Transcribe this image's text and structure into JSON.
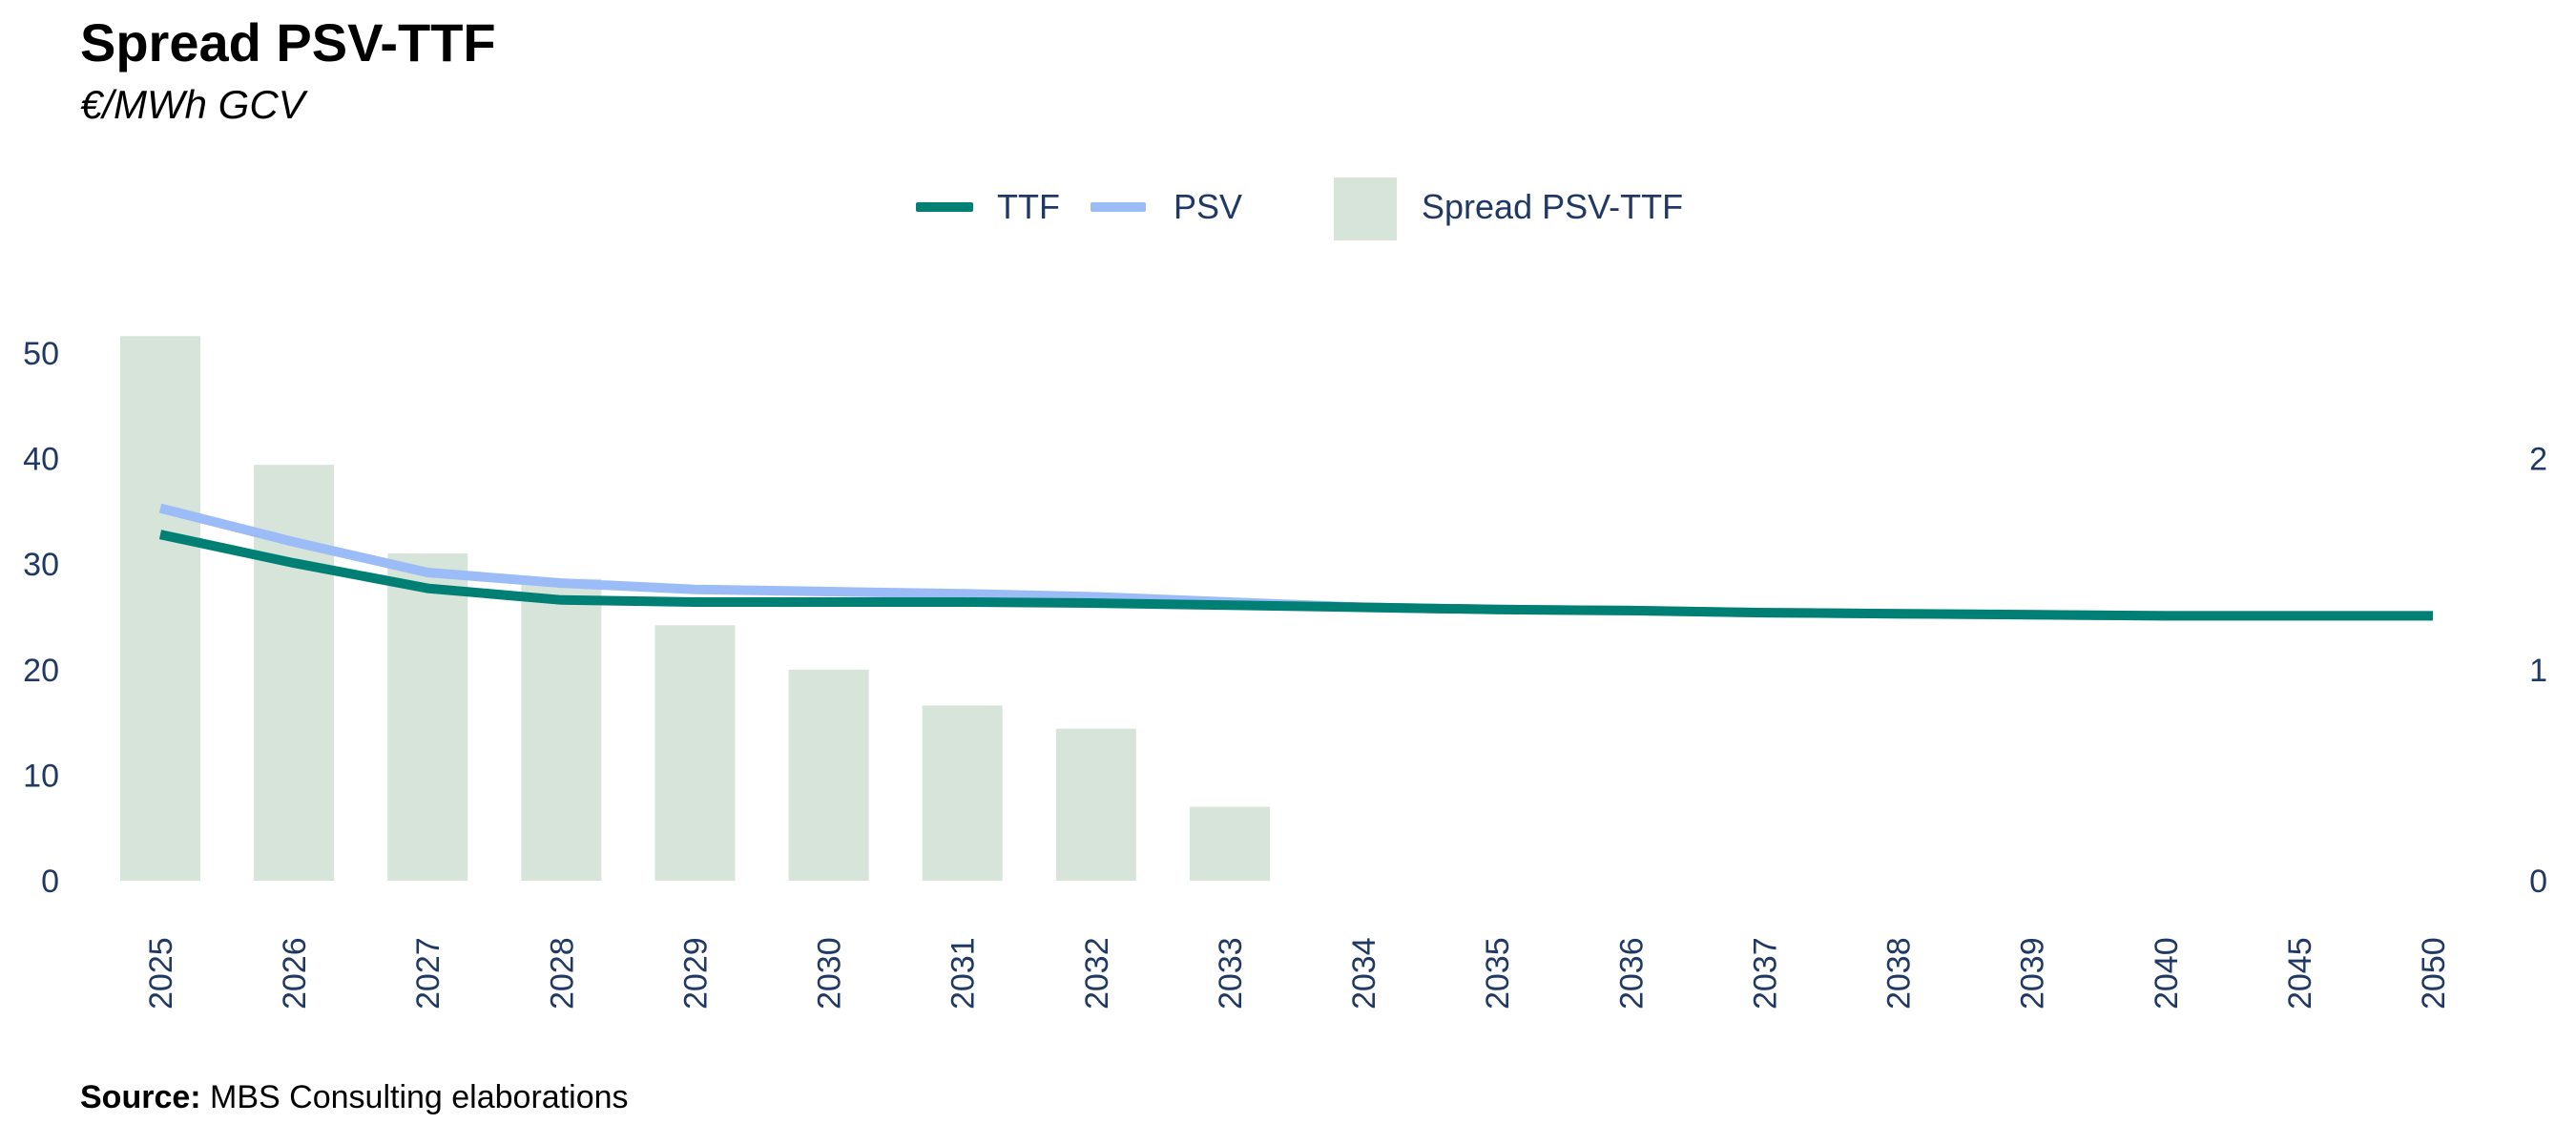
{
  "title": "Spread PSV-TTF",
  "subtitle": "€/MWh GCV",
  "source_label": "Source:",
  "source_text": "MBS Consulting elaborations",
  "legend": {
    "ttf": "TTF",
    "psv": "PSV",
    "spread": "Spread PSV-TTF"
  },
  "colors": {
    "ttf": "#007f74",
    "psv": "#9bbcf7",
    "spread": "#d6e4da",
    "axis_text": "#1f3864"
  },
  "chart_data": {
    "type": "bar+line",
    "categories": [
      "2025",
      "2026",
      "2027",
      "2028",
      "2029",
      "2030",
      "2031",
      "2032",
      "2033",
      "2034",
      "2035",
      "2036",
      "2037",
      "2038",
      "2039",
      "2040",
      "2045",
      "2050"
    ],
    "bars": {
      "name": "Spread PSV-TTF",
      "axis": "right",
      "values": [
        2.58,
        1.97,
        1.55,
        1.43,
        1.21,
        1.0,
        0.83,
        0.72,
        0.35,
        0,
        0,
        0,
        0,
        0,
        0,
        0,
        0,
        0
      ]
    },
    "series": [
      {
        "name": "TTF",
        "axis": "left",
        "values": [
          32.8,
          30.1,
          27.7,
          26.6,
          26.4,
          26.4,
          26.4,
          26.3,
          26.1,
          25.9,
          25.7,
          25.6,
          25.4,
          25.3,
          25.2,
          25.1,
          25.1,
          25.1
        ]
      },
      {
        "name": "PSV",
        "axis": "left",
        "values": [
          35.3,
          32.1,
          29.2,
          28.2,
          27.6,
          27.4,
          27.2,
          26.9,
          26.4,
          25.9,
          25.7,
          25.6,
          25.4,
          25.3,
          25.2,
          25.1,
          25.1,
          25.1
        ]
      }
    ],
    "y_left": {
      "ticks": [
        0,
        10,
        20,
        30,
        40,
        50
      ],
      "range": [
        0,
        50
      ]
    },
    "y_right": {
      "ticks": [
        0,
        1,
        2
      ],
      "range": [
        0,
        2
      ]
    },
    "grid": false,
    "legend_position": "top-center"
  }
}
